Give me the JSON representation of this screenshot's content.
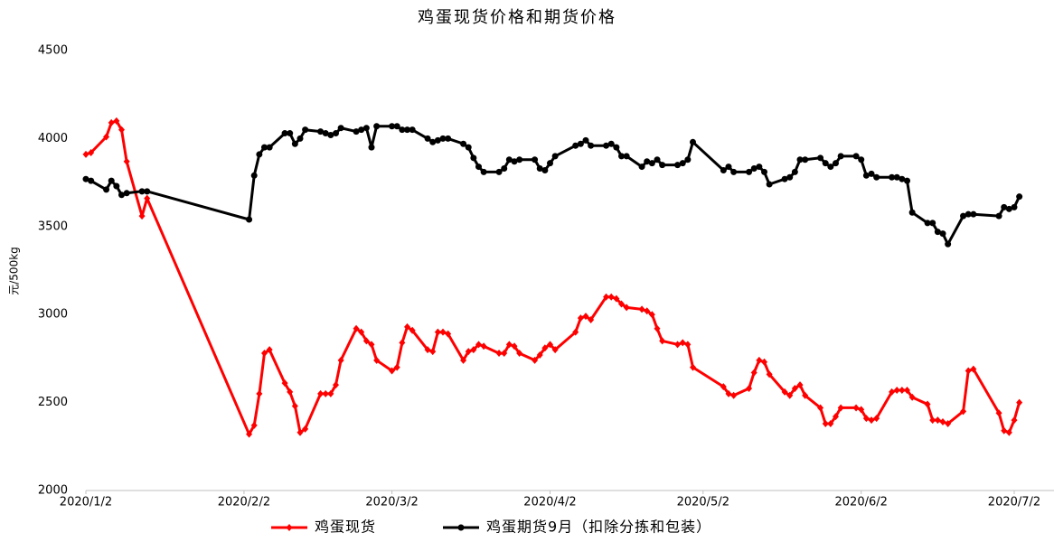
{
  "chart_data": {
    "type": "line",
    "title": "鸡蛋现货价格和期货价格",
    "y_label": "元/500kg",
    "x": [
      "2020-01-02",
      "2020-01-03",
      "2020-01-06",
      "2020-01-07",
      "2020-01-08",
      "2020-01-09",
      "2020-01-10",
      "2020-01-13",
      "2020-01-14",
      "2020-02-03",
      "2020-02-04",
      "2020-02-05",
      "2020-02-06",
      "2020-02-07",
      "2020-02-10",
      "2020-02-11",
      "2020-02-12",
      "2020-02-13",
      "2020-02-14",
      "2020-02-17",
      "2020-02-18",
      "2020-02-19",
      "2020-02-20",
      "2020-02-21",
      "2020-02-24",
      "2020-02-25",
      "2020-02-26",
      "2020-02-27",
      "2020-02-28",
      "2020-03-02",
      "2020-03-03",
      "2020-03-04",
      "2020-03-05",
      "2020-03-06",
      "2020-03-09",
      "2020-03-10",
      "2020-03-11",
      "2020-03-12",
      "2020-03-13",
      "2020-03-16",
      "2020-03-17",
      "2020-03-18",
      "2020-03-19",
      "2020-03-20",
      "2020-03-23",
      "2020-03-24",
      "2020-03-25",
      "2020-03-26",
      "2020-03-27",
      "2020-03-30",
      "2020-03-31",
      "2020-04-01",
      "2020-04-02",
      "2020-04-03",
      "2020-04-07",
      "2020-04-08",
      "2020-04-09",
      "2020-04-10",
      "2020-04-13",
      "2020-04-14",
      "2020-04-15",
      "2020-04-16",
      "2020-04-17",
      "2020-04-20",
      "2020-04-21",
      "2020-04-22",
      "2020-04-23",
      "2020-04-24",
      "2020-04-27",
      "2020-04-28",
      "2020-04-29",
      "2020-04-30",
      "2020-05-06",
      "2020-05-07",
      "2020-05-08",
      "2020-05-11",
      "2020-05-12",
      "2020-05-13",
      "2020-05-14",
      "2020-05-15",
      "2020-05-18",
      "2020-05-19",
      "2020-05-20",
      "2020-05-21",
      "2020-05-22",
      "2020-05-25",
      "2020-05-26",
      "2020-05-27",
      "2020-05-28",
      "2020-05-29",
      "2020-06-01",
      "2020-06-02",
      "2020-06-03",
      "2020-06-04",
      "2020-06-05",
      "2020-06-08",
      "2020-06-09",
      "2020-06-10",
      "2020-06-11",
      "2020-06-12",
      "2020-06-15",
      "2020-06-16",
      "2020-06-17",
      "2020-06-18",
      "2020-06-19",
      "2020-06-22",
      "2020-06-23",
      "2020-06-24",
      "2020-06-29",
      "2020-06-30",
      "2020-07-01",
      "2020-07-02",
      "2020-07-03"
    ],
    "series": [
      {
        "name": "鸡蛋现货",
        "color": "#ff0000",
        "marker": "diamond",
        "values": [
          3910,
          3920,
          4010,
          4090,
          4100,
          4050,
          3870,
          3560,
          3660,
          2320,
          2370,
          2550,
          2780,
          2800,
          2610,
          2560,
          2480,
          2330,
          2350,
          2550,
          2550,
          2550,
          2600,
          2740,
          2920,
          2900,
          2850,
          2830,
          2740,
          2680,
          2700,
          2840,
          2930,
          2910,
          2800,
          2790,
          2900,
          2900,
          2890,
          2740,
          2790,
          2800,
          2830,
          2820,
          2780,
          2780,
          2830,
          2820,
          2780,
          2740,
          2770,
          2810,
          2830,
          2800,
          2900,
          2980,
          2990,
          2970,
          3100,
          3100,
          3090,
          3060,
          3040,
          3030,
          3020,
          3000,
          2920,
          2850,
          2830,
          2840,
          2830,
          2700,
          2590,
          2550,
          2540,
          2580,
          2670,
          2740,
          2730,
          2660,
          2560,
          2540,
          2580,
          2600,
          2540,
          2470,
          2380,
          2380,
          2420,
          2470,
          2470,
          2460,
          2410,
          2400,
          2410,
          2560,
          2570,
          2570,
          2570,
          2530,
          2490,
          2400,
          2400,
          2390,
          2380,
          2450,
          2680,
          2690,
          2440,
          2340,
          2330,
          2400,
          2500
        ]
      },
      {
        "name": "鸡蛋期货9月（扣除分拣和包装）",
        "color": "#000000",
        "marker": "circle",
        "values": [
          3770,
          3760,
          3710,
          3760,
          3730,
          3680,
          3690,
          3700,
          3700,
          3540,
          3790,
          3910,
          3950,
          3950,
          4030,
          4030,
          3970,
          4000,
          4050,
          4040,
          4030,
          4020,
          4030,
          4060,
          4040,
          4050,
          4060,
          3950,
          4070,
          4070,
          4070,
          4050,
          4050,
          4050,
          4000,
          3980,
          3990,
          4000,
          4000,
          3970,
          3950,
          3890,
          3840,
          3810,
          3810,
          3830,
          3880,
          3870,
          3880,
          3880,
          3830,
          3820,
          3860,
          3900,
          3960,
          3970,
          3990,
          3960,
          3960,
          3970,
          3950,
          3900,
          3900,
          3840,
          3870,
          3860,
          3880,
          3850,
          3850,
          3860,
          3880,
          3980,
          3820,
          3840,
          3810,
          3810,
          3830,
          3840,
          3810,
          3740,
          3770,
          3780,
          3810,
          3880,
          3880,
          3890,
          3860,
          3840,
          3860,
          3900,
          3900,
          3880,
          3790,
          3800,
          3780,
          3780,
          3780,
          3770,
          3760,
          3580,
          3520,
          3520,
          3470,
          3460,
          3400,
          3560,
          3570,
          3570,
          3560,
          3610,
          3600,
          3610,
          3670
        ]
      }
    ],
    "xlim": [
      "2020-01-02",
      "2020-07-02"
    ],
    "xticks": [
      {
        "value": "2020-01-02",
        "label": "2020/1/2"
      },
      {
        "value": "2020-02-02",
        "label": "2020/2/2"
      },
      {
        "value": "2020-03-02",
        "label": "2020/3/2"
      },
      {
        "value": "2020-04-02",
        "label": "2020/4/2"
      },
      {
        "value": "2020-05-02",
        "label": "2020/5/2"
      },
      {
        "value": "2020-06-02",
        "label": "2020/6/2"
      },
      {
        "value": "2020-07-02",
        "label": "2020/7/2"
      }
    ],
    "ylim": [
      2000,
      4500
    ],
    "yticks": [
      2000,
      2500,
      3000,
      3500,
      4000,
      4500
    ],
    "legend": "bottom",
    "grid": false
  }
}
